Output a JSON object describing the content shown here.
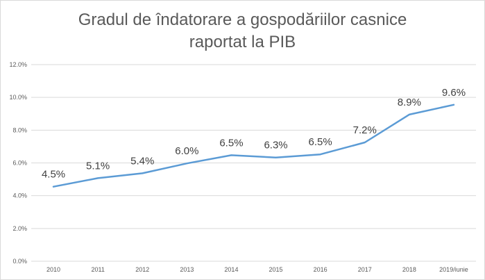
{
  "chart_data": {
    "type": "line",
    "title_line1": "Gradul de îndatorare a gospodăriilor casnice",
    "title_line2": "raportat la PIB",
    "categories": [
      "2010",
      "2011",
      "2012",
      "2013",
      "2014",
      "2015",
      "2016",
      "2017",
      "2018",
      "2019/iunie"
    ],
    "series": [
      {
        "name": "Gradul de îndatorare",
        "values": [
          4.55,
          5.07,
          5.37,
          5.97,
          6.47,
          6.33,
          6.52,
          7.25,
          8.95,
          9.55
        ],
        "labels": [
          "4.5%",
          "5.1%",
          "5.4%",
          "6.0%",
          "6.5%",
          "6.3%",
          "6.5%",
          "7.2%",
          "8.9%",
          "9.6%"
        ],
        "color": "#5b9bd5"
      }
    ],
    "y_ticks": [
      {
        "value": 0,
        "label": "0.0%"
      },
      {
        "value": 2,
        "label": "2.0%"
      },
      {
        "value": 4,
        "label": "4.0%"
      },
      {
        "value": 6,
        "label": "6.0%"
      },
      {
        "value": 8,
        "label": "8.0%"
      },
      {
        "value": 10,
        "label": "10.0%"
      },
      {
        "value": 12,
        "label": "12.0%"
      }
    ],
    "ylim": [
      0,
      12
    ],
    "xlabel": "",
    "ylabel": "",
    "grid": true,
    "colors": {
      "grid": "#d9d9d9",
      "axis_text": "#595959",
      "label_text": "#404040"
    }
  }
}
